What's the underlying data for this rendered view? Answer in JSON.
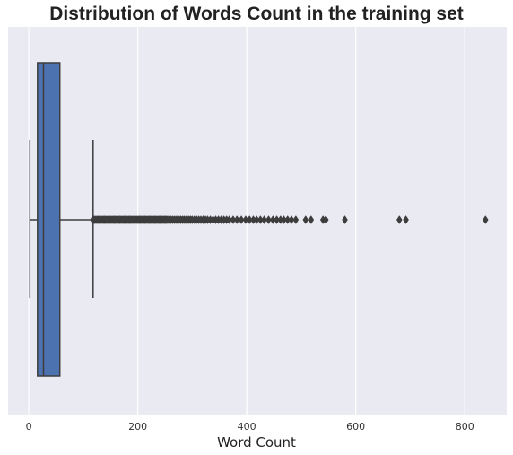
{
  "chart_data": {
    "type": "box",
    "orientation": "horizontal",
    "title": "Distribution of Words Count in the training set",
    "xlabel": "Word Count",
    "ylabel": "",
    "xlim": [
      -38,
      877
    ],
    "xticks": [
      0,
      200,
      400,
      600,
      800
    ],
    "grid": true,
    "colors": {
      "plot_background": "#eaeaf2",
      "grid": "#ffffff",
      "box_fill": "#4c72b0",
      "box_edge": "#3d3d3d",
      "median": "#3d3d3d",
      "whisker": "#3d3d3d",
      "flier": "#3d3d3d"
    },
    "box": {
      "whisker_low": 2,
      "q1": 16,
      "median": 27,
      "q3": 57,
      "whisker_high": 118
    },
    "outliers": [
      119,
      121,
      123,
      125,
      127,
      129,
      131,
      133,
      135,
      137,
      139,
      141,
      143,
      145,
      147,
      149,
      151,
      153,
      155,
      157,
      159,
      161,
      163,
      165,
      167,
      169,
      171,
      173,
      175,
      177,
      179,
      181,
      183,
      185,
      187,
      189,
      191,
      193,
      195,
      197,
      199,
      201,
      203,
      205,
      207,
      209,
      211,
      213,
      215,
      217,
      219,
      221,
      223,
      225,
      227,
      229,
      231,
      233,
      235,
      237,
      239,
      241,
      243,
      245,
      247,
      249,
      251,
      253,
      255,
      258,
      261,
      264,
      267,
      270,
      273,
      276,
      279,
      282,
      285,
      288,
      291,
      294,
      297,
      300,
      304,
      308,
      312,
      316,
      320,
      324,
      328,
      333,
      338,
      343,
      348,
      353,
      358,
      363,
      368,
      375,
      382,
      390,
      398,
      405,
      412,
      418,
      425,
      432,
      440,
      448,
      455,
      462,
      468,
      475,
      482,
      490,
      508,
      518,
      540,
      545,
      580,
      680,
      692,
      838
    ]
  }
}
